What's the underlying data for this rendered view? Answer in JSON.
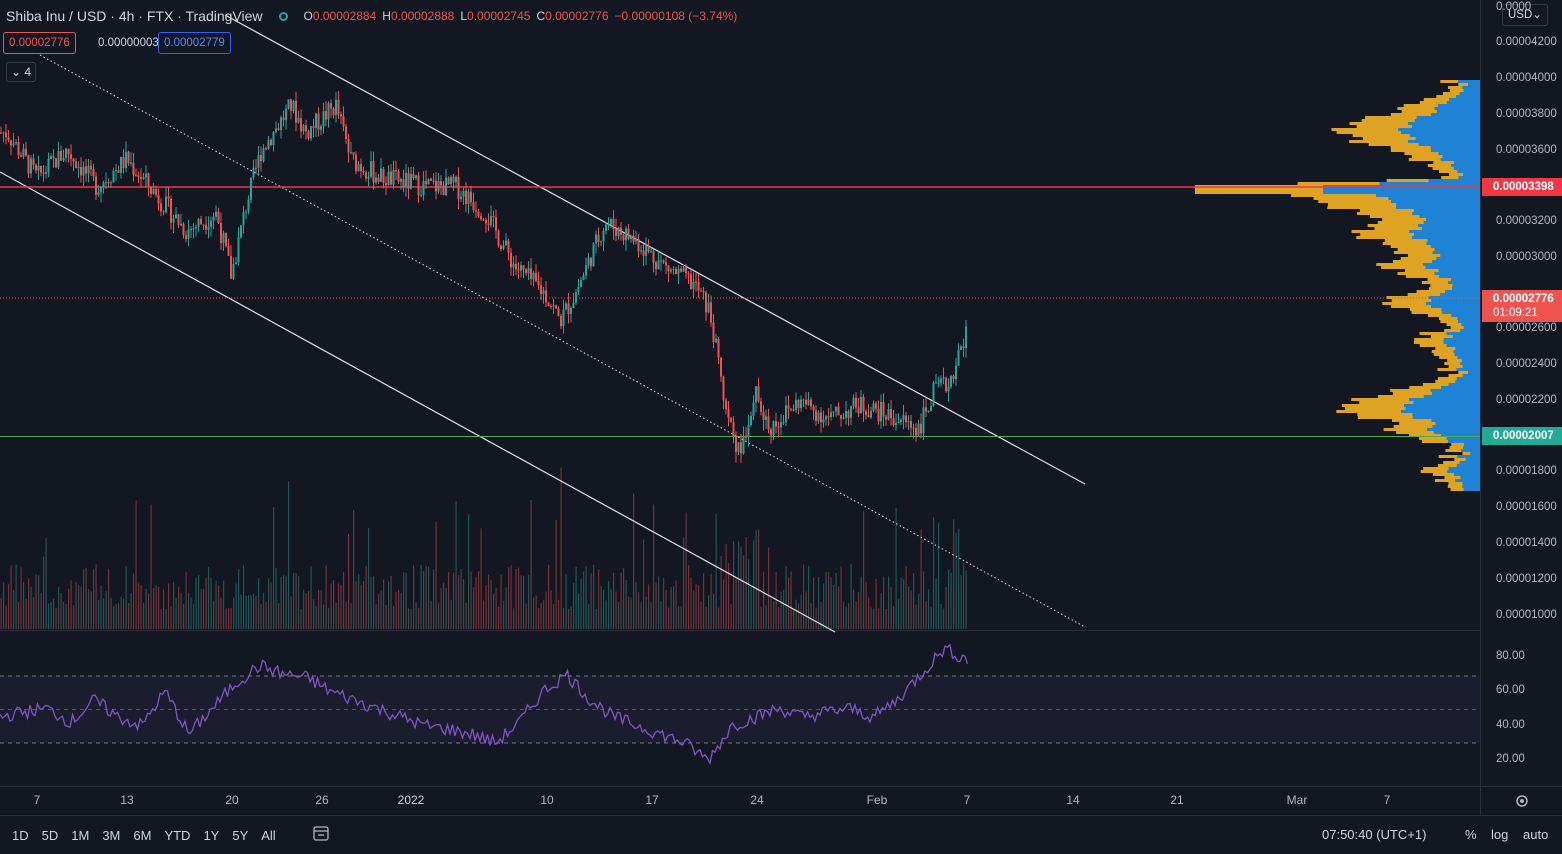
{
  "header": {
    "symbol": "Shiba Inu / USD · 4h · FTX · TradingView",
    "o_label": "O",
    "o": "0.00002884",
    "h_label": "H",
    "h": "0.00002888",
    "l_label": "L",
    "l": "0.00002745",
    "c_label": "C",
    "c": "0.00002776",
    "change": "−0.00000108 (−3.74%)"
  },
  "quote": {
    "sell": "0.00002776",
    "spread": "0.00000003",
    "buy": "0.00002779"
  },
  "indicator_toggle": "4",
  "currency": "USD",
  "y_axis": [
    "0.0000",
    "0.00004200",
    "0.00004000",
    "0.00003800",
    "0.00003600",
    "0.00003200",
    "0.00003000",
    "0.00002600",
    "0.00002400",
    "0.00002200",
    "0.00001800",
    "0.00001600",
    "0.00001400",
    "0.00001200",
    "0.00001000"
  ],
  "tags": {
    "resistance": "0.00003398",
    "support": "0.00002007",
    "current": "0.00002776",
    "countdown": "01:09:21"
  },
  "rsi_axis": [
    "80.00",
    "60.00",
    "40.00",
    "20.00"
  ],
  "x_axis": [
    "7",
    "13",
    "20",
    "26",
    "2022",
    "10",
    "17",
    "24",
    "Feb",
    "7",
    "14",
    "21",
    "Mar",
    "7"
  ],
  "timeframes": [
    "1D",
    "5D",
    "1M",
    "3M",
    "6M",
    "YTD",
    "1Y",
    "5Y",
    "All"
  ],
  "clock": "07:50:40 (UTC+1)",
  "scale_options": {
    "percent": "%",
    "log": "log",
    "auto": "auto"
  },
  "colors": {
    "up": "#26a69a",
    "down": "#ef5350",
    "resistance": "#f23645",
    "support": "#4caf50",
    "rsi": "#7e57c2",
    "vp_up": "#2196f3",
    "vp_down": "#f5b324"
  },
  "chart_data": {
    "type": "candlestick",
    "timeframe": "4h",
    "price_series_approx": [
      {
        "x": "Dec 5",
        "y": 3.7e-05
      },
      {
        "x": "Dec 7",
        "y": 3.45e-05
      },
      {
        "x": "Dec 9",
        "y": 3.6e-05
      },
      {
        "x": "Dec 11",
        "y": 3.4e-05
      },
      {
        "x": "Dec 13",
        "y": 3.55e-05
      },
      {
        "x": "Dec 15",
        "y": 3.35e-05
      },
      {
        "x": "Dec 17",
        "y": 3.15e-05
      },
      {
        "x": "Dec 19",
        "y": 3.25e-05
      },
      {
        "x": "Dec 20",
        "y": 2.9e-05
      },
      {
        "x": "Dec 21",
        "y": 3.3e-05
      },
      {
        "x": "Dec 22",
        "y": 3.6e-05
      },
      {
        "x": "Dec 24",
        "y": 3.85e-05
      },
      {
        "x": "Dec 25",
        "y": 3.7e-05
      },
      {
        "x": "Dec 27",
        "y": 3.85e-05
      },
      {
        "x": "Dec 28",
        "y": 3.55e-05
      },
      {
        "x": "Dec 30",
        "y": 3.45e-05
      },
      {
        "x": "Jan 1",
        "y": 3.4e-05
      },
      {
        "x": "Jan 3",
        "y": 3.4e-05
      },
      {
        "x": "Jan 5",
        "y": 3.25e-05
      },
      {
        "x": "Jan 7",
        "y": 2.95e-05
      },
      {
        "x": "Jan 9",
        "y": 2.8e-05
      },
      {
        "x": "Jan 10",
        "y": 2.65e-05
      },
      {
        "x": "Jan 11",
        "y": 2.8e-05
      },
      {
        "x": "Jan 13",
        "y": 3.2e-05
      },
      {
        "x": "Jan 15",
        "y": 3.1e-05
      },
      {
        "x": "Jan 17",
        "y": 2.95e-05
      },
      {
        "x": "Jan 19",
        "y": 2.85e-05
      },
      {
        "x": "Jan 20",
        "y": 2.7e-05
      },
      {
        "x": "Jan 21",
        "y": 2.2e-05
      },
      {
        "x": "Jan 22",
        "y": 1.9e-05
      },
      {
        "x": "Jan 23",
        "y": 2.25e-05
      },
      {
        "x": "Jan 24",
        "y": 2.05e-05
      },
      {
        "x": "Jan 26",
        "y": 2.2e-05
      },
      {
        "x": "Jan 28",
        "y": 2.1e-05
      },
      {
        "x": "Jan 30",
        "y": 2.18e-05
      },
      {
        "x": "Feb 1",
        "y": 2.12e-05
      },
      {
        "x": "Feb 3",
        "y": 2.05e-05
      },
      {
        "x": "Feb 4",
        "y": 2.25e-05
      },
      {
        "x": "Feb 5",
        "y": 2.3e-05
      },
      {
        "x": "Feb 6",
        "y": 2.55e-05
      },
      {
        "x": "Feb 7",
        "y": 2.78e-05
      }
    ],
    "horizontal_lines": [
      3.398e-05,
      2.007e-05
    ],
    "rsi_bands": [
      70,
      50,
      30
    ],
    "rsi_series_approx": [
      45,
      48,
      50,
      42,
      55,
      45,
      40,
      60,
      35,
      50,
      65,
      75,
      70,
      68,
      60,
      55,
      50,
      45,
      40,
      38,
      35,
      30,
      42,
      60,
      70,
      55,
      45,
      40,
      35,
      30,
      20,
      40,
      45,
      50,
      45,
      48,
      50,
      45,
      55,
      70,
      85,
      78
    ]
  }
}
